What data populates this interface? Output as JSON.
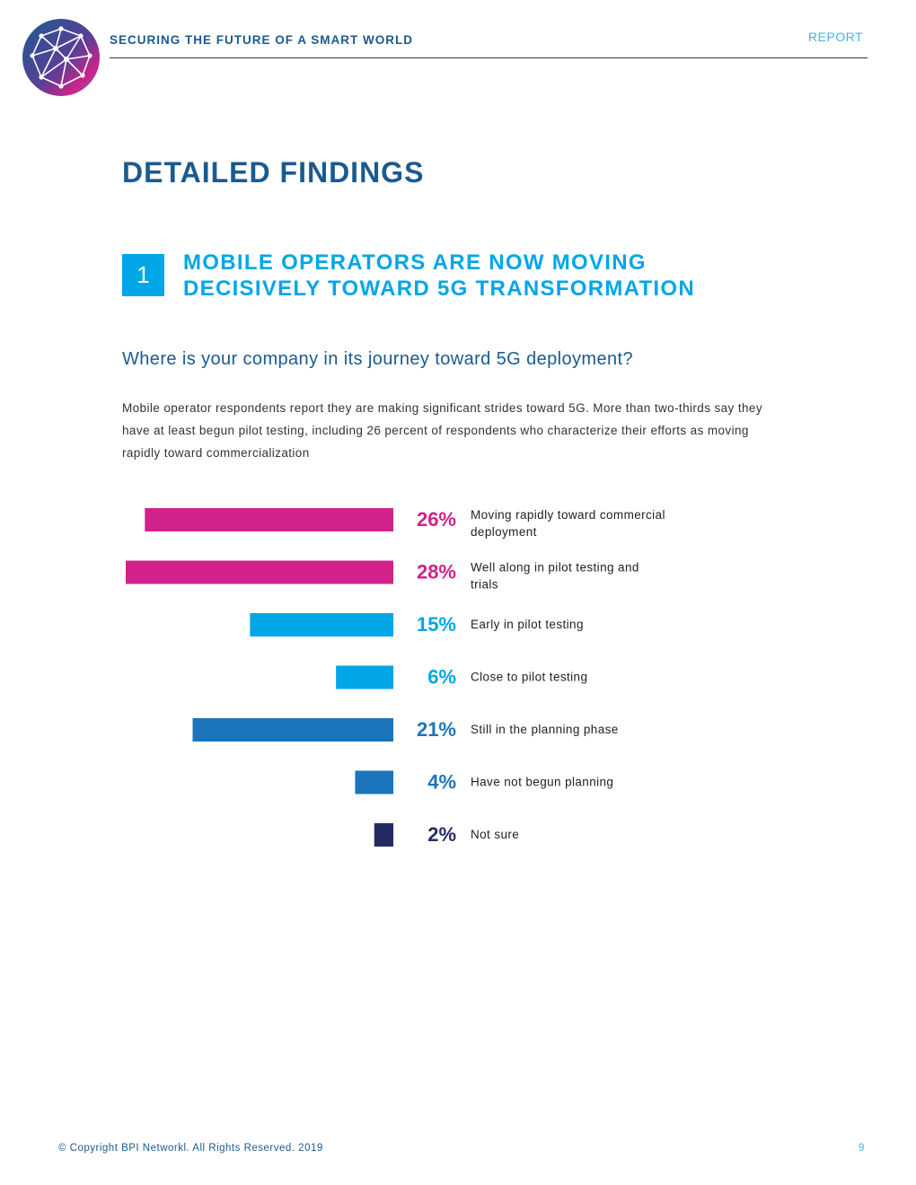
{
  "header": {
    "tagline": "SECURING THE FUTURE OF A SMART WORLD",
    "report_label": "REPORT",
    "logo_icon": "globe-network-logo"
  },
  "page_title": "DETAILED FINDINGS",
  "section": {
    "number": "1",
    "heading_line1": "MOBILE OPERATORS ARE NOW MOVING",
    "heading_line2": "DECISIVELY TOWARD 5G TRANSFORMATION"
  },
  "question": "Where is your company in its journey toward 5G deployment?",
  "intro": "Mobile operator respondents report they are making significant strides toward 5G. More than two-thirds say they have at least begun pilot testing, including 26 percent of respondents who characterize their efforts as moving rapidly toward commercialization",
  "chart_data": {
    "type": "bar",
    "orientation": "horizontal",
    "categories": [
      "Moving rapidly toward commercial deployment",
      "Well along in pilot testing and trials",
      "Early in pilot testing",
      "Close to pilot testing",
      "Still in the planning phase",
      "Have not begun planning",
      "Not sure"
    ],
    "values": [
      26,
      28,
      15,
      6,
      21,
      4,
      2
    ],
    "value_labels": [
      "26%",
      "28%",
      "15%",
      "6%",
      "21%",
      "4%",
      "2%"
    ],
    "colors": [
      "#d0228a",
      "#d0228a",
      "#00a6e6",
      "#00a6e6",
      "#1b75bb",
      "#1b75bb",
      "#262a63"
    ],
    "xlim": [
      0,
      28
    ]
  },
  "footer": {
    "copyright": "© Copyright BPI Networkl. All Rights Reserved. 2019",
    "page_number": "9"
  }
}
